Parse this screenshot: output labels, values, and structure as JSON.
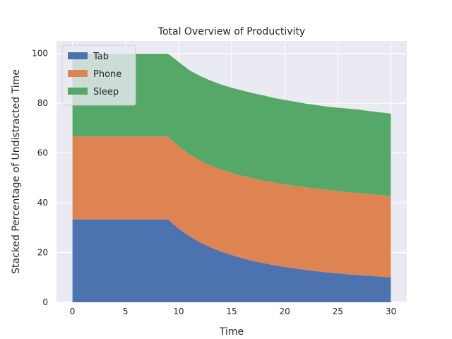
{
  "chart_data": {
    "type": "area",
    "stacked": true,
    "title": "Total Overview of Productivity",
    "xlabel": "Time",
    "ylabel": "Stacked Percentage of Undistracted Time",
    "xlim": [
      -1.5,
      31.5
    ],
    "ylim": [
      0,
      105
    ],
    "xticks": [
      0,
      5,
      10,
      15,
      20,
      25,
      30
    ],
    "yticks": [
      0,
      20,
      40,
      60,
      80,
      100
    ],
    "grid": true,
    "legend_position": "top-left",
    "x": [
      0,
      1,
      2,
      3,
      4,
      5,
      6,
      7,
      8,
      9,
      10,
      11,
      12,
      13,
      14,
      15,
      16,
      17,
      18,
      19,
      20,
      21,
      22,
      23,
      24,
      25,
      26,
      27,
      28,
      29,
      30
    ],
    "series": [
      {
        "name": "Tab",
        "color": "#4c72b0",
        "values": [
          33.3,
          33.3,
          33.3,
          33.3,
          33.3,
          33.3,
          33.3,
          33.3,
          33.3,
          33.3,
          29.6,
          26.6,
          24.1,
          22.1,
          20.4,
          19.0,
          17.7,
          16.6,
          15.7,
          14.9,
          14.2,
          13.6,
          13.0,
          12.5,
          12.0,
          11.6,
          11.2,
          10.9,
          10.6,
          10.3,
          10.0
        ]
      },
      {
        "name": "Phone",
        "color": "#dd8452",
        "values": [
          33.3,
          33.3,
          33.3,
          33.3,
          33.3,
          33.3,
          33.3,
          33.3,
          33.3,
          33.3,
          33.1,
          33.0,
          32.9,
          32.9,
          33.0,
          33.0,
          33.1,
          33.2,
          33.2,
          33.2,
          33.2,
          33.2,
          33.2,
          33.2,
          33.2,
          33.1,
          33.0,
          33.0,
          32.9,
          32.8,
          32.7
        ]
      },
      {
        "name": "Sleep",
        "color": "#55a868",
        "values": [
          33.3,
          33.3,
          33.3,
          33.3,
          33.3,
          33.3,
          33.3,
          33.3,
          33.3,
          33.3,
          33.9,
          33.7,
          34.0,
          34.1,
          34.1,
          34.2,
          34.3,
          34.2,
          34.2,
          34.0,
          33.9,
          33.8,
          33.6,
          33.5,
          33.4,
          33.5,
          33.6,
          33.5,
          33.3,
          33.2,
          33.1
        ]
      }
    ]
  }
}
